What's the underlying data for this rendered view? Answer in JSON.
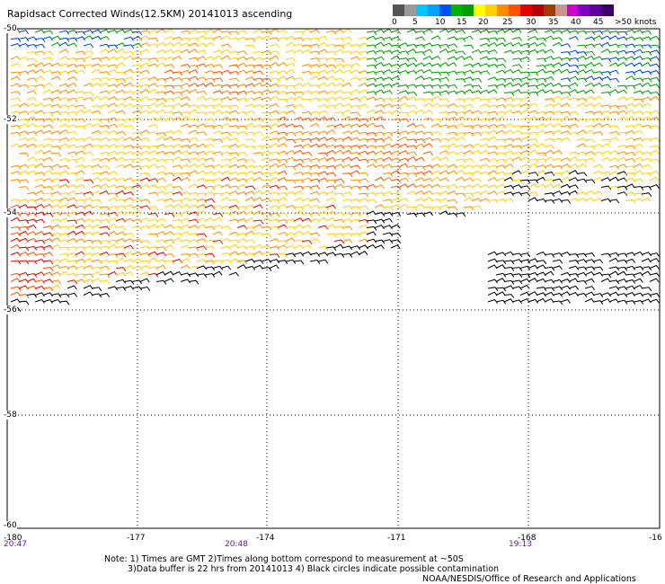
{
  "title": "Rapidsact Corrected Winds(12.5KM) 20141013 ascending",
  "colorbar": {
    "colors": [
      "#555555",
      "#9a9a9a",
      "#00c8ff",
      "#00a0ff",
      "#0050ff",
      "#00b400",
      "#00a000",
      "#ffff00",
      "#ffd000",
      "#ff8c00",
      "#ff5000",
      "#e60000",
      "#b40000",
      "#a03c00",
      "#c89690",
      "#d000d0",
      "#8000c8",
      "#6000a0",
      "#3a006a"
    ],
    "labels": [
      "0",
      "5",
      "10",
      "15",
      "20",
      "25",
      "30",
      "35",
      "40",
      "45",
      ">50 knots"
    ]
  },
  "axes": {
    "lat_labels": [
      "-50",
      "-52",
      "-54",
      "-56",
      "-58",
      "-60"
    ],
    "lon_labels": [
      "-180",
      "-177",
      "-174",
      "-171",
      "-168",
      "-16"
    ]
  },
  "times": [
    "20:47",
    "20:48",
    "19:13"
  ],
  "notes": [
    "Note: 1) Times are GMT 2)Times along bottom correspond to measurement at ~50S",
    "3)Data buffer is 22 hrs from 20141013 4) Black circles indicate possible contamination",
    "NOAA/NESDIS/Office of Research and Applications"
  ]
}
